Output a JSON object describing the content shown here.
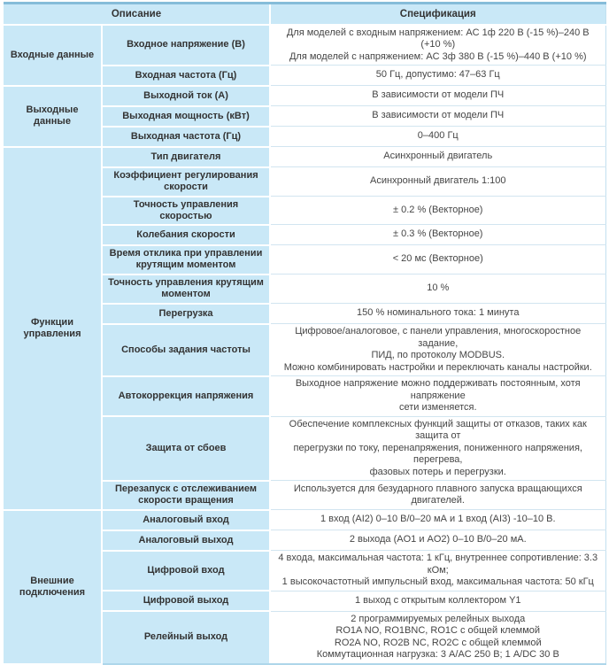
{
  "colors": {
    "cell_blue": "#c9e8f7",
    "top_border_blue": "#85bcd9",
    "row_divider": "#d2e5f0"
  },
  "header": {
    "description": "Описание",
    "specification": "Спецификация"
  },
  "groups": [
    {
      "label": "Входные данные",
      "rows": [
        {
          "param": "Входное напряжение (В)",
          "spec": [
            "Для моделей с входным напряжением: AC 1ф 220 В (-15 %)–240 В (+10 %)",
            "Для моделей с напряжением: AC 3ф 380 В (-15 %)–440 В (+10 %)"
          ]
        },
        {
          "param": "Входная частота (Гц)",
          "spec": [
            "50 Гц, допустимо: 47–63 Гц"
          ]
        }
      ]
    },
    {
      "label": "Выходные данные",
      "rows": [
        {
          "param": "Выходной ток (А)",
          "spec": [
            "В зависимости от модели ПЧ"
          ]
        },
        {
          "param": "Выходная мощность (кВт)",
          "spec": [
            "В зависимости от модели ПЧ"
          ]
        },
        {
          "param": "Выходная частота (Гц)",
          "spec": [
            "0–400 Гц"
          ]
        }
      ]
    },
    {
      "label": "Функции управления",
      "rows": [
        {
          "param": "Тип двигателя",
          "spec": [
            "Асинхронный двигатель"
          ]
        },
        {
          "param": "Коэффициент регулирования скорости",
          "spec": [
            "Асинхронный двигатель 1:100"
          ]
        },
        {
          "param": "Точность управления скоростью",
          "spec": [
            "± 0.2 % (Векторное)"
          ]
        },
        {
          "param": "Колебания скорости",
          "spec": [
            "± 0.3 % (Векторное)"
          ]
        },
        {
          "param": "Время отклика при управлении крутящим моментом",
          "spec": [
            "< 20 мс (Векторное)"
          ]
        },
        {
          "param": "Точность управления крутящим моментом",
          "spec": [
            "10 %"
          ]
        },
        {
          "param": "Перегрузка",
          "spec": [
            "150 % номинального тока: 1 минута"
          ]
        },
        {
          "param": "Способы задания частоты",
          "spec": [
            "Цифровое/аналоговое, с панели управления, многоскоростное задание,",
            "ПИД, по протоколу MODBUS.",
            "Можно комбинировать настройки и переключать каналы настройки."
          ]
        },
        {
          "param": "Автокоррекция напряжения",
          "spec": [
            "Выходное напряжение можно поддерживать постоянным, хотя напряжение",
            "сети изменяется."
          ]
        },
        {
          "param": "Защита от сбоев",
          "spec": [
            "Обеспечение комплексных функций защиты от отказов, таких как защита от",
            "перегрузки по току, перенапряжения, пониженного напряжения, перегрева,",
            "фазовых потерь и перегрузки."
          ]
        },
        {
          "param": "Перезапуск с отслеживанием скорости вращения",
          "spec": [
            "Используется для безударного плавного запуска вращающихся двигателей."
          ]
        }
      ]
    },
    {
      "label": "Внешние подключения",
      "rows": [
        {
          "param": "Аналоговый вход",
          "spec": [
            "1 вход (AI2) 0–10 В/0–20 мА и 1 вход (AI3) -10–10 В."
          ]
        },
        {
          "param": "Аналоговый выход",
          "spec": [
            "2 выхода (AO1 и AO2) 0–10 В/0–20 мА."
          ]
        },
        {
          "param": "Цифровой вход",
          "spec": [
            "4 входа, максимальная частота: 1 кГц, внутреннее сопротивление: 3.3 кОм;",
            "1 высокочастотный импульсный вход, максимальная частота: 50 кГц"
          ]
        },
        {
          "param": "Цифровой выход",
          "spec": [
            "1 выход с открытым коллектором Y1"
          ]
        },
        {
          "param": "Релейный выход",
          "spec": [
            "2 программируемых релейных выхода",
            "RO1A NO, RO1BNC, RO1C с общей клеммой",
            "RO2A NO, RO2B NC, RO2C с общей клеммой",
            "Коммутационная нагрузка: 3 А/AC 250 В; 1 А/DC 30 В"
          ]
        }
      ]
    }
  ]
}
